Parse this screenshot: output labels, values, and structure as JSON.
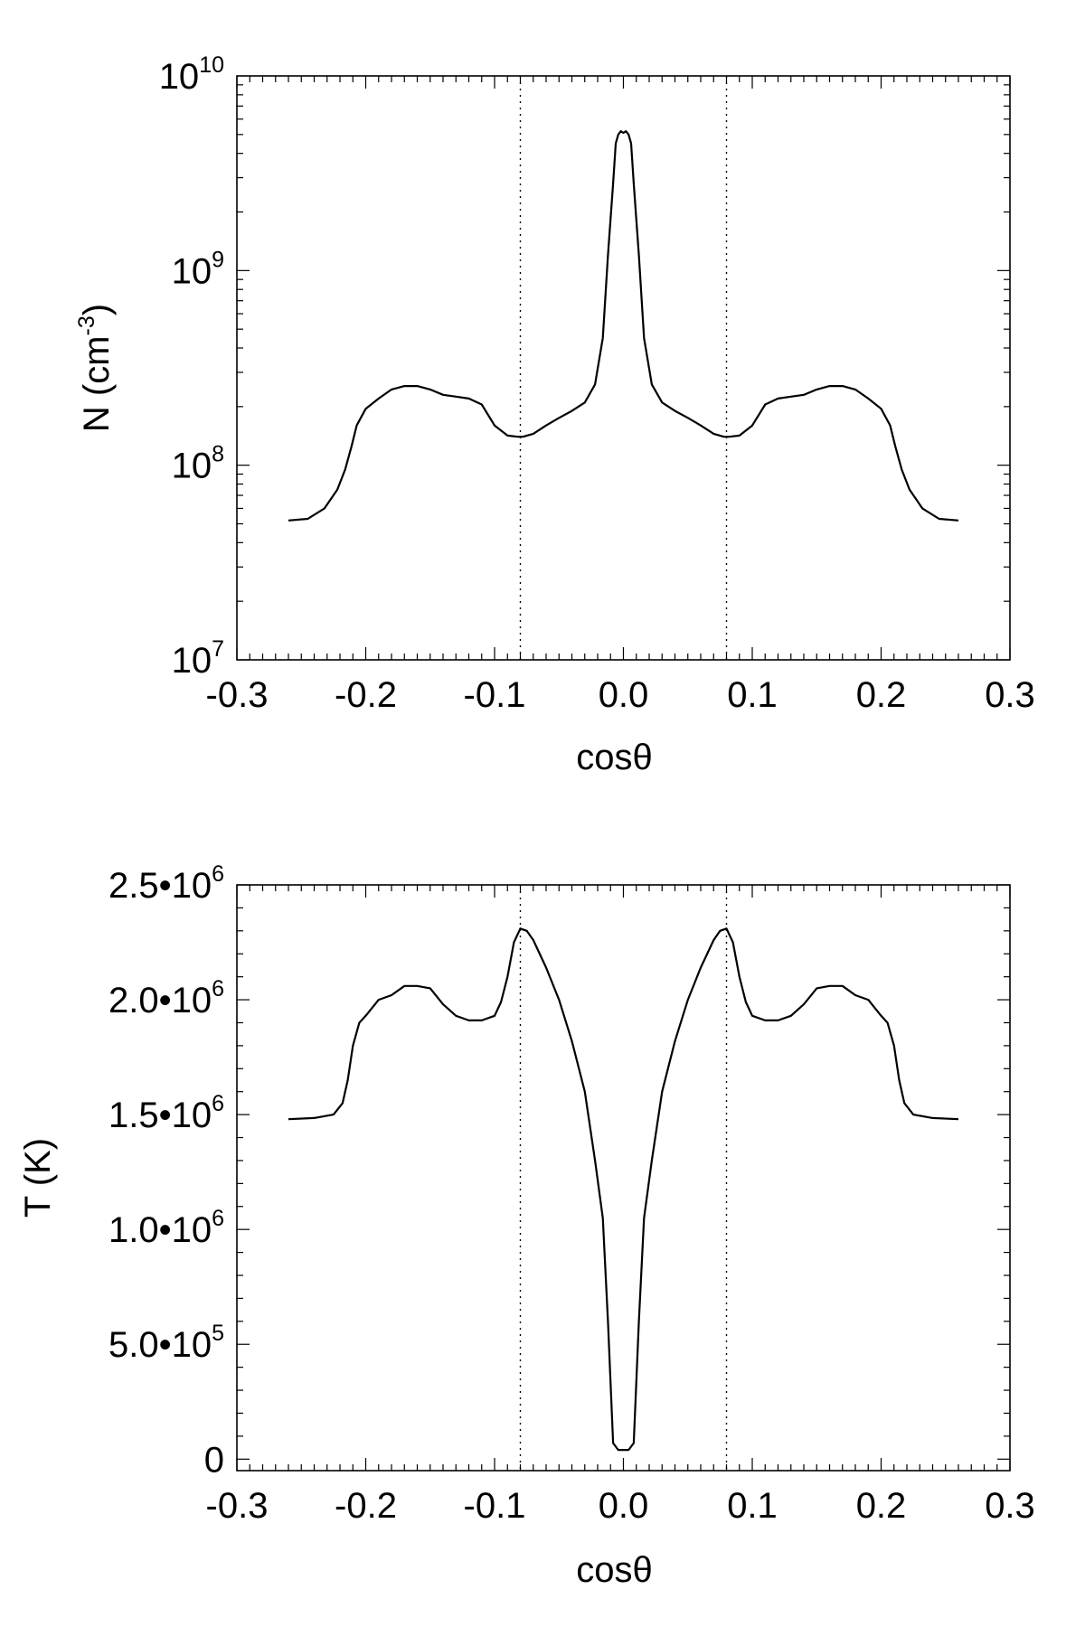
{
  "chart_data": [
    {
      "type": "line",
      "xlabel": "cosθ",
      "ylabel": "N (cm⁻³)",
      "ylabel_base": "N (cm",
      "ylabel_exp": "-3",
      "ylabel_close": ")",
      "yscale": "log",
      "xlim": [
        -0.3,
        0.3
      ],
      "ylim": [
        10000000.0,
        10000000000.0
      ],
      "xticks": [
        -0.3,
        -0.2,
        -0.1,
        0.0,
        0.1,
        0.2,
        0.3
      ],
      "xtick_labels": [
        "-0.3",
        "-0.2",
        "-0.1",
        "0.0",
        "0.1",
        "0.2",
        "0.3"
      ],
      "yticks": [
        10000000.0,
        100000000.0,
        1000000000.0,
        10000000000.0
      ],
      "ytick_labels": [
        {
          "base": "10",
          "exp": "7"
        },
        {
          "base": "10",
          "exp": "8"
        },
        {
          "base": "10",
          "exp": "9"
        },
        {
          "base": "10",
          "exp": "10"
        }
      ],
      "reference_lines_x": [
        -0.08,
        0.08
      ],
      "series": [
        {
          "x": [
            -0.26,
            -0.245,
            -0.232,
            -0.222,
            -0.216,
            -0.211,
            -0.207,
            -0.2,
            -0.19,
            -0.18,
            -0.17,
            -0.16,
            -0.15,
            -0.14,
            -0.13,
            -0.12,
            -0.11,
            -0.1,
            -0.09,
            -0.082,
            -0.078,
            -0.07,
            -0.06,
            -0.05,
            -0.04,
            -0.03,
            -0.022,
            -0.016,
            -0.012,
            -0.008,
            -0.006,
            -0.004,
            -0.002,
            0.0,
            0.002,
            0.004,
            0.006,
            0.008,
            0.012,
            0.016,
            0.022,
            0.03,
            0.04,
            0.05,
            0.06,
            0.07,
            0.078,
            0.082,
            0.09,
            0.1,
            0.11,
            0.12,
            0.13,
            0.14,
            0.15,
            0.16,
            0.17,
            0.18,
            0.19,
            0.2,
            0.207,
            0.211,
            0.216,
            0.222,
            0.232,
            0.245,
            0.26
          ],
          "y": [
            52000000.0,
            53000000.0,
            60000000.0,
            75000000.0,
            95000000.0,
            125000000.0,
            160000000.0,
            195000000.0,
            220000000.0,
            245000000.0,
            255000000.0,
            255000000.0,
            245000000.0,
            230000000.0,
            225000000.0,
            220000000.0,
            205000000.0,
            160000000.0,
            142000000.0,
            140000000.0,
            140000000.0,
            145000000.0,
            160000000.0,
            175000000.0,
            190000000.0,
            210000000.0,
            260000000.0,
            450000000.0,
            1200000000.0,
            2800000000.0,
            4500000000.0,
            5000000000.0,
            5200000000.0,
            5100000000.0,
            5200000000.0,
            5000000000.0,
            4500000000.0,
            2800000000.0,
            1200000000.0,
            450000000.0,
            260000000.0,
            210000000.0,
            190000000.0,
            175000000.0,
            160000000.0,
            145000000.0,
            140000000.0,
            140000000.0,
            142000000.0,
            160000000.0,
            205000000.0,
            220000000.0,
            225000000.0,
            230000000.0,
            245000000.0,
            255000000.0,
            255000000.0,
            245000000.0,
            220000000.0,
            195000000.0,
            160000000.0,
            125000000.0,
            95000000.0,
            75000000.0,
            60000000.0,
            53000000.0,
            52000000.0
          ]
        }
      ]
    },
    {
      "type": "line",
      "xlabel": "cosθ",
      "ylabel": "T (K)",
      "yscale": "linear",
      "xlim": [
        -0.3,
        0.3
      ],
      "ylim": [
        -50000,
        2500000
      ],
      "xticks": [
        -0.3,
        -0.2,
        -0.1,
        0.0,
        0.1,
        0.2,
        0.3
      ],
      "xtick_labels": [
        "-0.3",
        "-0.2",
        "-0.1",
        "0.0",
        "0.1",
        "0.2",
        "0.3"
      ],
      "yticks": [
        0,
        500000,
        1000000,
        1500000,
        2000000,
        2500000
      ],
      "ytick_labels": [
        {
          "base": "0",
          "exp": ""
        },
        {
          "base": "5.0•10",
          "exp": "5"
        },
        {
          "base": "1.0•10",
          "exp": "6"
        },
        {
          "base": "1.5•10",
          "exp": "6"
        },
        {
          "base": "2.0•10",
          "exp": "6"
        },
        {
          "base": "2.5•10",
          "exp": "6"
        }
      ],
      "reference_lines_x": [
        -0.08,
        0.08
      ],
      "series": [
        {
          "x": [
            -0.26,
            -0.24,
            -0.225,
            -0.218,
            -0.214,
            -0.21,
            -0.205,
            -0.2,
            -0.19,
            -0.18,
            -0.17,
            -0.16,
            -0.15,
            -0.14,
            -0.13,
            -0.12,
            -0.11,
            -0.1,
            -0.095,
            -0.09,
            -0.085,
            -0.08,
            -0.075,
            -0.07,
            -0.06,
            -0.05,
            -0.04,
            -0.03,
            -0.022,
            -0.016,
            -0.012,
            -0.008,
            -0.004,
            0.0,
            0.004,
            0.008,
            0.012,
            0.016,
            0.022,
            0.03,
            0.04,
            0.05,
            0.06,
            0.07,
            0.075,
            0.08,
            0.085,
            0.09,
            0.095,
            0.1,
            0.11,
            0.12,
            0.13,
            0.14,
            0.15,
            0.16,
            0.17,
            0.18,
            0.19,
            0.2,
            0.205,
            0.21,
            0.214,
            0.218,
            0.225,
            0.24,
            0.26
          ],
          "y": [
            1480000,
            1485000,
            1500000,
            1550000,
            1650000,
            1800000,
            1900000,
            1930000,
            2000000,
            2020000,
            2060000,
            2060000,
            2050000,
            1980000,
            1930000,
            1910000,
            1910000,
            1930000,
            1990000,
            2100000,
            2250000,
            2310000,
            2300000,
            2260000,
            2140000,
            2000000,
            1820000,
            1600000,
            1300000,
            1050000,
            600000,
            70000,
            40000,
            40000,
            40000,
            70000,
            600000,
            1050000,
            1300000,
            1600000,
            1820000,
            2000000,
            2140000,
            2260000,
            2300000,
            2310000,
            2250000,
            2100000,
            1990000,
            1930000,
            1910000,
            1910000,
            1930000,
            1980000,
            2050000,
            2060000,
            2060000,
            2020000,
            2000000,
            1930000,
            1900000,
            1800000,
            1650000,
            1550000,
            1500000,
            1485000,
            1480000
          ]
        }
      ]
    }
  ]
}
